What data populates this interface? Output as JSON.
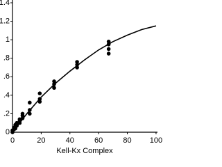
{
  "chart_data": {
    "type": "scatter",
    "x_label": "Kell-Kx Complex",
    "xlim": [
      0,
      101
    ],
    "ylim": [
      0,
      1.43
    ],
    "xticks": [
      0,
      20,
      40,
      60,
      80,
      100
    ],
    "yticks": [
      0,
      {
        "value": 0.2,
        "label": ".2"
      },
      {
        "value": 0.4,
        "label": ".4"
      },
      {
        "value": 0.6,
        "label": ".6"
      },
      {
        "value": 0.8,
        "label": ".8"
      },
      1,
      1.2,
      1.4
    ],
    "series": [
      {
        "color": "#000000",
        "x": [
          0,
          0,
          1,
          1,
          2,
          2,
          2,
          3,
          3,
          5,
          5,
          5,
          7,
          7,
          7,
          12,
          12,
          12,
          19,
          19,
          19,
          29,
          29,
          29,
          45,
          45,
          45,
          67,
          67,
          67,
          67
        ],
        "y": [
          0,
          0.02,
          0.03,
          0.05,
          0.05,
          0.08,
          0.04,
          0.1,
          0.07,
          0.12,
          0.1,
          0.14,
          0.15,
          0.18,
          0.2,
          0.2,
          0.24,
          0.32,
          0.33,
          0.36,
          0.42,
          0.48,
          0.52,
          0.55,
          0.7,
          0.73,
          0.76,
          0.85,
          0.9,
          0.95,
          0.98
        ]
      }
    ],
    "fit": {
      "color": "#000000",
      "x": [
        0,
        10,
        20,
        30,
        40,
        50,
        60,
        70,
        80,
        90,
        100
      ],
      "y": [
        0,
        0.2,
        0.38,
        0.53,
        0.66,
        0.78,
        0.89,
        0.98,
        1.05,
        1.11,
        1.15
      ]
    }
  }
}
